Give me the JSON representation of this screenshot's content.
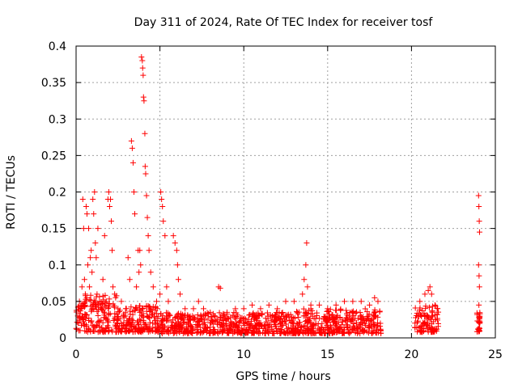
{
  "chart_data": {
    "type": "scatter",
    "title": "Day 311 of 2024, Rate Of TEC Index for receiver tosf",
    "xlabel": "GPS time / hours",
    "ylabel": "ROTI / TECUs",
    "xlim": [
      0,
      25
    ],
    "ylim": [
      0,
      0.4
    ],
    "xticks": [
      0,
      5,
      10,
      15,
      20,
      25
    ],
    "yticks": [
      0,
      0.05,
      0.1,
      0.15,
      0.2,
      0.25,
      0.3,
      0.35,
      0.4
    ],
    "xtick_labels": [
      "0",
      "5",
      "10",
      "15",
      "20",
      "25"
    ],
    "ytick_labels": [
      "0",
      "0.05",
      "0.1",
      "0.15",
      "0.2",
      "0.25",
      "0.3",
      "0.35",
      "0.4"
    ],
    "grid": true,
    "marker": "+",
    "marker_color": "#ff0000",
    "series": [
      {
        "name": "ROTI",
        "points": [
          [
            0.1,
            0.03
          ],
          [
            0.2,
            0.05
          ],
          [
            0.3,
            0.04
          ],
          [
            0.35,
            0.07
          ],
          [
            0.4,
            0.19
          ],
          [
            0.45,
            0.15
          ],
          [
            0.5,
            0.08
          ],
          [
            0.55,
            0.06
          ],
          [
            0.6,
            0.18
          ],
          [
            0.65,
            0.17
          ],
          [
            0.7,
            0.1
          ],
          [
            0.75,
            0.15
          ],
          [
            0.8,
            0.07
          ],
          [
            0.85,
            0.11
          ],
          [
            0.9,
            0.12
          ],
          [
            0.95,
            0.09
          ],
          [
            1.0,
            0.19
          ],
          [
            1.05,
            0.17
          ],
          [
            1.1,
            0.2
          ],
          [
            1.15,
            0.13
          ],
          [
            1.2,
            0.11
          ],
          [
            1.25,
            0.06
          ],
          [
            1.3,
            0.15
          ],
          [
            1.4,
            0.05
          ],
          [
            1.5,
            0.04
          ],
          [
            1.6,
            0.08
          ],
          [
            1.7,
            0.14
          ],
          [
            1.8,
            0.05
          ],
          [
            1.9,
            0.19
          ],
          [
            1.95,
            0.2
          ],
          [
            2.0,
            0.18
          ],
          [
            2.05,
            0.19
          ],
          [
            2.1,
            0.16
          ],
          [
            2.15,
            0.12
          ],
          [
            2.2,
            0.07
          ],
          [
            2.3,
            0.06
          ],
          [
            2.5,
            0.04
          ],
          [
            2.7,
            0.05
          ],
          [
            3.0,
            0.04
          ],
          [
            3.1,
            0.11
          ],
          [
            3.2,
            0.08
          ],
          [
            3.3,
            0.27
          ],
          [
            3.35,
            0.26
          ],
          [
            3.4,
            0.24
          ],
          [
            3.45,
            0.2
          ],
          [
            3.5,
            0.17
          ],
          [
            3.6,
            0.07
          ],
          [
            3.7,
            0.12
          ],
          [
            3.75,
            0.09
          ],
          [
            3.8,
            0.12
          ],
          [
            3.85,
            0.1
          ],
          [
            3.9,
            0.385
          ],
          [
            3.95,
            0.38
          ],
          [
            3.97,
            0.37
          ],
          [
            4.0,
            0.36
          ],
          [
            4.02,
            0.33
          ],
          [
            4.05,
            0.325
          ],
          [
            4.1,
            0.28
          ],
          [
            4.12,
            0.235
          ],
          [
            4.15,
            0.225
          ],
          [
            4.2,
            0.195
          ],
          [
            4.25,
            0.165
          ],
          [
            4.3,
            0.14
          ],
          [
            4.35,
            0.12
          ],
          [
            4.45,
            0.09
          ],
          [
            4.6,
            0.07
          ],
          [
            4.8,
            0.05
          ],
          [
            5.0,
            0.06
          ],
          [
            5.05,
            0.2
          ],
          [
            5.1,
            0.19
          ],
          [
            5.15,
            0.18
          ],
          [
            5.2,
            0.16
          ],
          [
            5.3,
            0.14
          ],
          [
            5.4,
            0.07
          ],
          [
            5.5,
            0.05
          ],
          [
            5.8,
            0.14
          ],
          [
            5.9,
            0.13
          ],
          [
            6.0,
            0.12
          ],
          [
            6.05,
            0.1
          ],
          [
            6.1,
            0.08
          ],
          [
            6.2,
            0.06
          ],
          [
            6.5,
            0.04
          ],
          [
            7.0,
            0.04
          ],
          [
            7.3,
            0.05
          ],
          [
            7.6,
            0.04
          ],
          [
            8.0,
            0.035
          ],
          [
            8.5,
            0.07
          ],
          [
            8.6,
            0.068
          ],
          [
            9.0,
            0.035
          ],
          [
            9.5,
            0.04
          ],
          [
            10.0,
            0.04
          ],
          [
            10.5,
            0.045
          ],
          [
            11.0,
            0.04
          ],
          [
            11.5,
            0.045
          ],
          [
            12.0,
            0.04
          ],
          [
            12.5,
            0.05
          ],
          [
            13.0,
            0.05
          ],
          [
            13.5,
            0.06
          ],
          [
            13.6,
            0.08
          ],
          [
            13.7,
            0.1
          ],
          [
            13.75,
            0.13
          ],
          [
            13.8,
            0.07
          ],
          [
            14.0,
            0.045
          ],
          [
            14.5,
            0.045
          ],
          [
            15.0,
            0.04
          ],
          [
            15.5,
            0.045
          ],
          [
            16.0,
            0.05
          ],
          [
            16.5,
            0.05
          ],
          [
            17.0,
            0.05
          ],
          [
            17.5,
            0.045
          ],
          [
            17.8,
            0.055
          ],
          [
            18.0,
            0.05
          ],
          [
            20.5,
            0.05
          ],
          [
            20.8,
            0.06
          ],
          [
            21.0,
            0.065
          ],
          [
            21.1,
            0.07
          ],
          [
            21.2,
            0.06
          ],
          [
            21.4,
            0.045
          ],
          [
            24.0,
            0.195
          ],
          [
            24.02,
            0.18
          ],
          [
            24.04,
            0.16
          ],
          [
            24.06,
            0.145
          ],
          [
            24.0,
            0.1
          ],
          [
            24.03,
            0.085
          ],
          [
            24.05,
            0.07
          ],
          [
            24.02,
            0.045
          ]
        ],
        "baseline_bands": [
          {
            "x_from": 0.0,
            "x_to": 0.5,
            "y_min": 0.01,
            "y_max": 0.05
          },
          {
            "x_from": 0.5,
            "x_to": 2.5,
            "y_min": 0.008,
            "y_max": 0.06
          },
          {
            "x_from": 2.5,
            "x_to": 5.0,
            "y_min": 0.008,
            "y_max": 0.045
          },
          {
            "x_from": 5.0,
            "x_to": 8.0,
            "y_min": 0.006,
            "y_max": 0.035
          },
          {
            "x_from": 8.0,
            "x_to": 13.0,
            "y_min": 0.006,
            "y_max": 0.035
          },
          {
            "x_from": 13.0,
            "x_to": 18.2,
            "y_min": 0.006,
            "y_max": 0.04
          },
          {
            "x_from": 20.2,
            "x_to": 21.6,
            "y_min": 0.008,
            "y_max": 0.045
          },
          {
            "x_from": 23.9,
            "x_to": 24.1,
            "y_min": 0.008,
            "y_max": 0.035
          }
        ]
      }
    ]
  }
}
